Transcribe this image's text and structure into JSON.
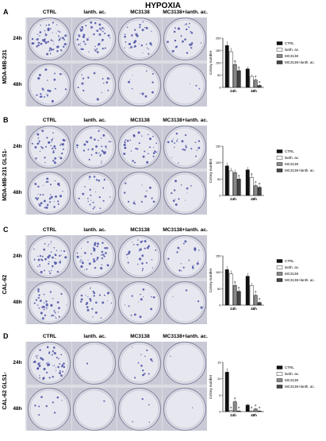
{
  "figure": {
    "title": "HYPOXIA",
    "column_headers": [
      "CTRL",
      "lanth. ac.",
      "MC3138",
      "MC3138+lanth. ac."
    ],
    "row_labels": [
      "24h",
      "48h"
    ],
    "panels": [
      {
        "letter": "A",
        "cell_line": "MDA-MB-231"
      },
      {
        "letter": "B",
        "cell_line": "MDA-MB-231 GLS1-"
      },
      {
        "letter": "C",
        "cell_line": "CAL-62"
      },
      {
        "letter": "D",
        "cell_line": "CAL-62 GLS1-"
      }
    ],
    "colors": {
      "ctrl": "#111111",
      "lanth": "#ffffff",
      "mc3138": "#888888",
      "combo": "#444444",
      "plate_bg": "#e3e4ea",
      "colony": "#4a4fa6"
    }
  },
  "chart_data": [
    {
      "type": "bar",
      "ylabel": "Colony number",
      "categories": [
        "24h",
        "48h"
      ],
      "ylim": [
        0,
        200
      ],
      "yticks": [
        0,
        50,
        100,
        150,
        200
      ],
      "series": [
        {
          "name": "CTRL",
          "values": [
            170,
            75
          ]
        },
        {
          "name": "lanth. ac.",
          "values": [
            145,
            45
          ]
        },
        {
          "name": "MC3138",
          "values": [
            93,
            30
          ]
        },
        {
          "name": "MC3138+lanth. ac.",
          "values": [
            68,
            8
          ]
        }
      ],
      "annotations": {
        "mc3138": [
          "#",
          "#"
        ],
        "combo": [
          "#",
          "#"
        ]
      },
      "legend": "right"
    },
    {
      "type": "bar",
      "ylabel": "Colony number",
      "categories": [
        "24h",
        "48h"
      ],
      "ylim": [
        0,
        150
      ],
      "yticks": [
        0,
        50,
        100,
        150
      ],
      "series": [
        {
          "name": "CTRL",
          "values": [
            90,
            78
          ]
        },
        {
          "name": "lanth. ac.",
          "values": [
            75,
            55
          ]
        },
        {
          "name": "MC3138",
          "values": [
            70,
            30
          ]
        },
        {
          "name": "MC3138+lanth. ac.",
          "values": [
            50,
            25
          ]
        }
      ],
      "annotations": {
        "lanth": [
          "",
          "#"
        ],
        "mc3138": [
          "",
          "#"
        ],
        "combo": [
          "#",
          "#"
        ]
      },
      "legend": "right"
    },
    {
      "type": "bar",
      "ylabel": "Colony number",
      "categories": [
        "24h",
        "48h"
      ],
      "ylim": [
        0,
        150
      ],
      "yticks": [
        0,
        50,
        100,
        150
      ],
      "series": [
        {
          "name": "CTRL",
          "values": [
            108,
            88
          ]
        },
        {
          "name": "lanth. ac.",
          "values": [
            95,
            60
          ]
        },
        {
          "name": "MC3138",
          "values": [
            60,
            30
          ]
        },
        {
          "name": "MC3138+lanth. ac.",
          "values": [
            42,
            8
          ]
        }
      ],
      "annotations": {
        "mc3138": [
          "#",
          "#"
        ],
        "combo": [
          "#",
          "#"
        ]
      },
      "legend": "right"
    },
    {
      "type": "bar",
      "ylabel": "Colony number",
      "categories": [
        "24h",
        "48h"
      ],
      "ylim": [
        0,
        15
      ],
      "yticks": [
        0,
        5,
        10,
        15
      ],
      "series": [
        {
          "name": "CTRL",
          "values": [
            12,
            2
          ]
        },
        {
          "name": "lanth. ac.",
          "values": [
            0.3,
            0.2
          ]
        },
        {
          "name": "MC3138",
          "values": [
            3,
            0.8
          ]
        },
        {
          "name": "MC3138+lanth. ac.",
          "values": [
            0.2,
            0.2
          ]
        }
      ],
      "annotations": {
        "lanth": [
          "#",
          "#"
        ],
        "mc3138": [
          "#",
          "#"
        ],
        "combo": [
          "#",
          "#"
        ]
      },
      "legend": "right"
    }
  ]
}
